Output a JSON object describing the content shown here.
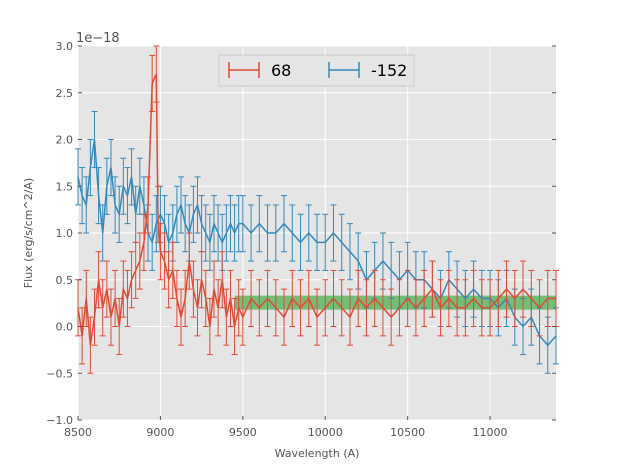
{
  "chart_data": {
    "type": "line",
    "xlabel": "Wavelength (A)",
    "ylabel": "Flux (erg/s/cm^2/A)",
    "y_offset_label": "1e−18",
    "xlim": [
      8500,
      11400
    ],
    "ylim": [
      -1.0,
      3.0
    ],
    "x_ticks": [
      8500,
      9000,
      9500,
      10000,
      10500,
      11000
    ],
    "y_ticks": [
      "−1.0",
      "−0.5",
      "0.0",
      "0.5",
      "1.0",
      "1.5",
      "2.0",
      "2.5",
      "3.0"
    ],
    "y_tick_values": [
      -1.0,
      -0.5,
      0.0,
      0.5,
      1.0,
      1.5,
      2.0,
      2.5,
      3.0
    ],
    "grid": true,
    "legend_position": "top-center",
    "band": {
      "x": [
        9450,
        11400
      ],
      "y": [
        0.18,
        0.33
      ],
      "color": "#4caf50"
    },
    "series": [
      {
        "name": "68",
        "color": "#e24a33",
        "error": 0.3,
        "x": [
          8500,
          8525,
          8550,
          8575,
          8600,
          8625,
          8650,
          8675,
          8700,
          8725,
          8750,
          8775,
          8800,
          8825,
          8850,
          8875,
          8900,
          8925,
          8950,
          8975,
          8985,
          9000,
          9025,
          9050,
          9075,
          9100,
          9125,
          9150,
          9175,
          9200,
          9225,
          9250,
          9275,
          9300,
          9325,
          9350,
          9375,
          9400,
          9425,
          9450,
          9475,
          9500,
          9550,
          9600,
          9650,
          9700,
          9750,
          9800,
          9850,
          9900,
          9950,
          10000,
          10050,
          10100,
          10150,
          10200,
          10250,
          10300,
          10350,
          10400,
          10450,
          10500,
          10550,
          10600,
          10650,
          10700,
          10750,
          10800,
          10850,
          10900,
          10950,
          11000,
          11050,
          11100,
          11150,
          11200,
          11250,
          11300,
          11350,
          11400
        ],
        "y": [
          0.2,
          -0.1,
          0.3,
          -0.2,
          0.1,
          0.5,
          0.2,
          0.4,
          0.1,
          0.3,
          0.0,
          0.4,
          0.3,
          0.5,
          0.6,
          0.7,
          0.9,
          1.3,
          2.6,
          2.7,
          1.2,
          0.8,
          0.7,
          0.5,
          0.6,
          0.3,
          0.1,
          0.3,
          0.7,
          0.4,
          0.2,
          0.5,
          0.3,
          0.0,
          0.4,
          0.2,
          0.5,
          0.1,
          0.3,
          0.0,
          0.2,
          0.1,
          0.3,
          0.2,
          0.3,
          0.2,
          0.1,
          0.3,
          0.2,
          0.3,
          0.1,
          0.2,
          0.3,
          0.2,
          0.1,
          0.3,
          0.2,
          0.3,
          0.2,
          0.1,
          0.2,
          0.3,
          0.2,
          0.3,
          0.4,
          0.2,
          0.3,
          0.2,
          0.2,
          0.3,
          0.2,
          0.2,
          0.3,
          0.4,
          0.3,
          0.4,
          0.3,
          0.2,
          0.3,
          0.3
        ]
      },
      {
        "name": "-152",
        "color": "#348abd",
        "error": 0.3,
        "x": [
          8500,
          8525,
          8550,
          8575,
          8600,
          8625,
          8650,
          8675,
          8700,
          8725,
          8750,
          8775,
          8800,
          8825,
          8850,
          8875,
          8900,
          8925,
          8950,
          8975,
          9000,
          9025,
          9050,
          9075,
          9100,
          9125,
          9150,
          9175,
          9200,
          9225,
          9250,
          9275,
          9300,
          9325,
          9350,
          9375,
          9400,
          9425,
          9450,
          9475,
          9500,
          9550,
          9600,
          9650,
          9700,
          9750,
          9800,
          9850,
          9900,
          9950,
          10000,
          10050,
          10100,
          10150,
          10200,
          10250,
          10300,
          10350,
          10400,
          10450,
          10500,
          10550,
          10600,
          10650,
          10700,
          10750,
          10800,
          10850,
          10900,
          10950,
          11000,
          11050,
          11100,
          11150,
          11200,
          11250,
          11300,
          11350,
          11400
        ],
        "y": [
          1.6,
          1.4,
          1.3,
          1.7,
          2.0,
          1.4,
          1.0,
          1.5,
          1.7,
          1.3,
          1.2,
          1.5,
          1.4,
          1.6,
          1.2,
          1.5,
          1.3,
          1.0,
          0.9,
          1.1,
          1.2,
          1.1,
          0.9,
          1.0,
          1.2,
          1.3,
          1.1,
          1.0,
          1.2,
          1.3,
          1.1,
          1.0,
          0.9,
          1.1,
          1.0,
          0.9,
          1.0,
          1.1,
          1.0,
          1.1,
          1.1,
          1.0,
          1.1,
          1.0,
          1.0,
          1.1,
          1.0,
          0.9,
          1.0,
          0.9,
          0.9,
          1.0,
          0.9,
          0.8,
          0.7,
          0.5,
          0.6,
          0.7,
          0.6,
          0.5,
          0.6,
          0.5,
          0.5,
          0.4,
          0.3,
          0.5,
          0.4,
          0.3,
          0.4,
          0.3,
          0.3,
          0.2,
          0.3,
          0.1,
          0.0,
          0.1,
          -0.1,
          -0.2,
          -0.1
        ]
      }
    ]
  }
}
